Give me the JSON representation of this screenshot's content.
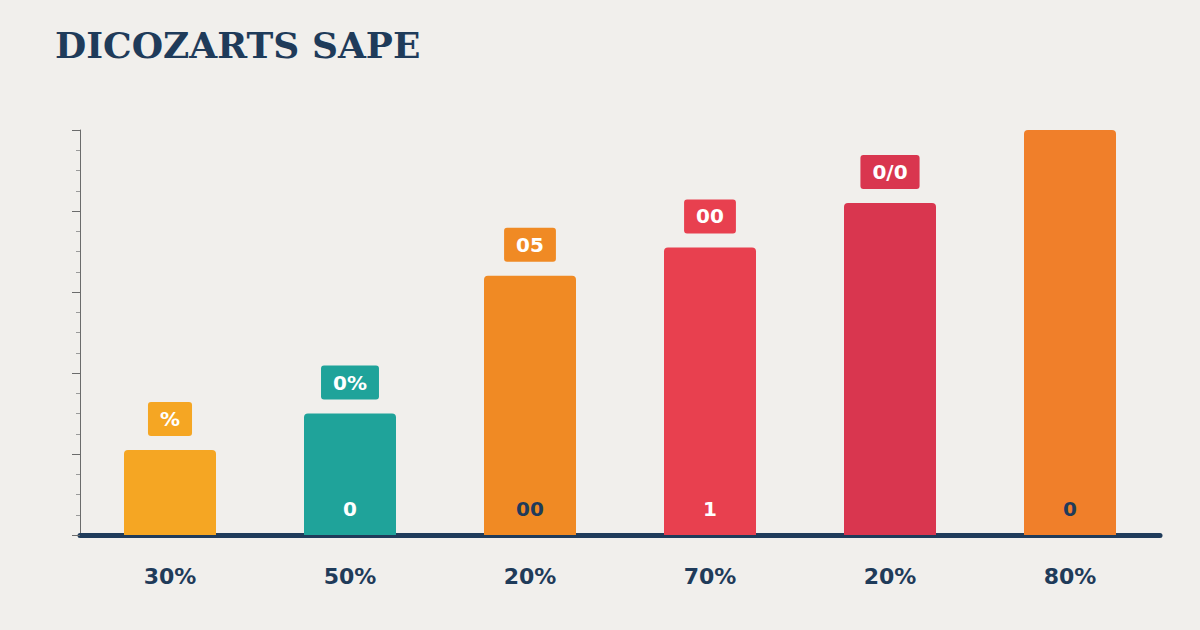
{
  "chart_data": {
    "type": "bar",
    "title": "DICOZARTS SAPE",
    "categories": [
      "30%",
      "50%",
      "20%",
      "70%",
      "20%",
      "80%"
    ],
    "values": [
      21,
      30,
      64,
      71,
      82,
      100
    ],
    "colors": [
      "#f5a623",
      "#1fa39a",
      "#f08a24",
      "#e8404f",
      "#d9364f",
      "#f07f2a"
    ],
    "top_labels": [
      "%",
      "0%",
      "05",
      "00",
      "0/0",
      null
    ],
    "inside_labels": [
      null,
      "0",
      "00",
      "1",
      null,
      "0"
    ],
    "ylim": [
      0,
      100
    ],
    "yticks": [
      0,
      20,
      40,
      60,
      80,
      100
    ],
    "grid": false,
    "tick_labels": "x",
    "data_labels": false
  }
}
